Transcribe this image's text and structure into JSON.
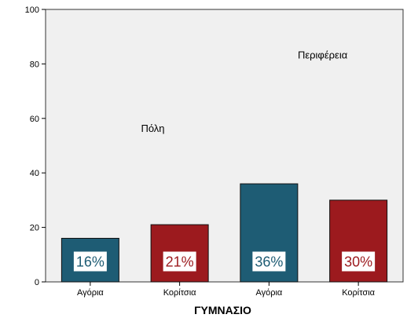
{
  "chart_data": {
    "type": "bar",
    "categories": [
      "Αγόρια",
      "Κορίτσια",
      "Αγόρια",
      "Κορίτσια"
    ],
    "values": [
      16,
      21,
      36,
      30
    ],
    "value_labels": [
      "16%",
      "21%",
      "36%",
      "30%"
    ],
    "bar_colors": [
      "#1e5c74",
      "#9c1a1e",
      "#1e5c74",
      "#9c1a1e"
    ],
    "label_text_colors": [
      "#1e5c74",
      "#9c1a1e",
      "#1e5c74",
      "#9c1a1e"
    ],
    "group_labels": [
      {
        "text": "Πόλη",
        "x_category_index": 0.7,
        "y": 55
      },
      {
        "text": "Περιφέρεια",
        "x_category_index": 2.6,
        "y": 82
      }
    ],
    "xlabel": "ΓΥΜΝΑΣΙΟ",
    "ylabel": "",
    "ylim": [
      0,
      100
    ],
    "yticks": [
      0,
      20,
      40,
      60,
      80,
      100
    ],
    "grid": false,
    "plot_background": "#f0f0f0"
  }
}
